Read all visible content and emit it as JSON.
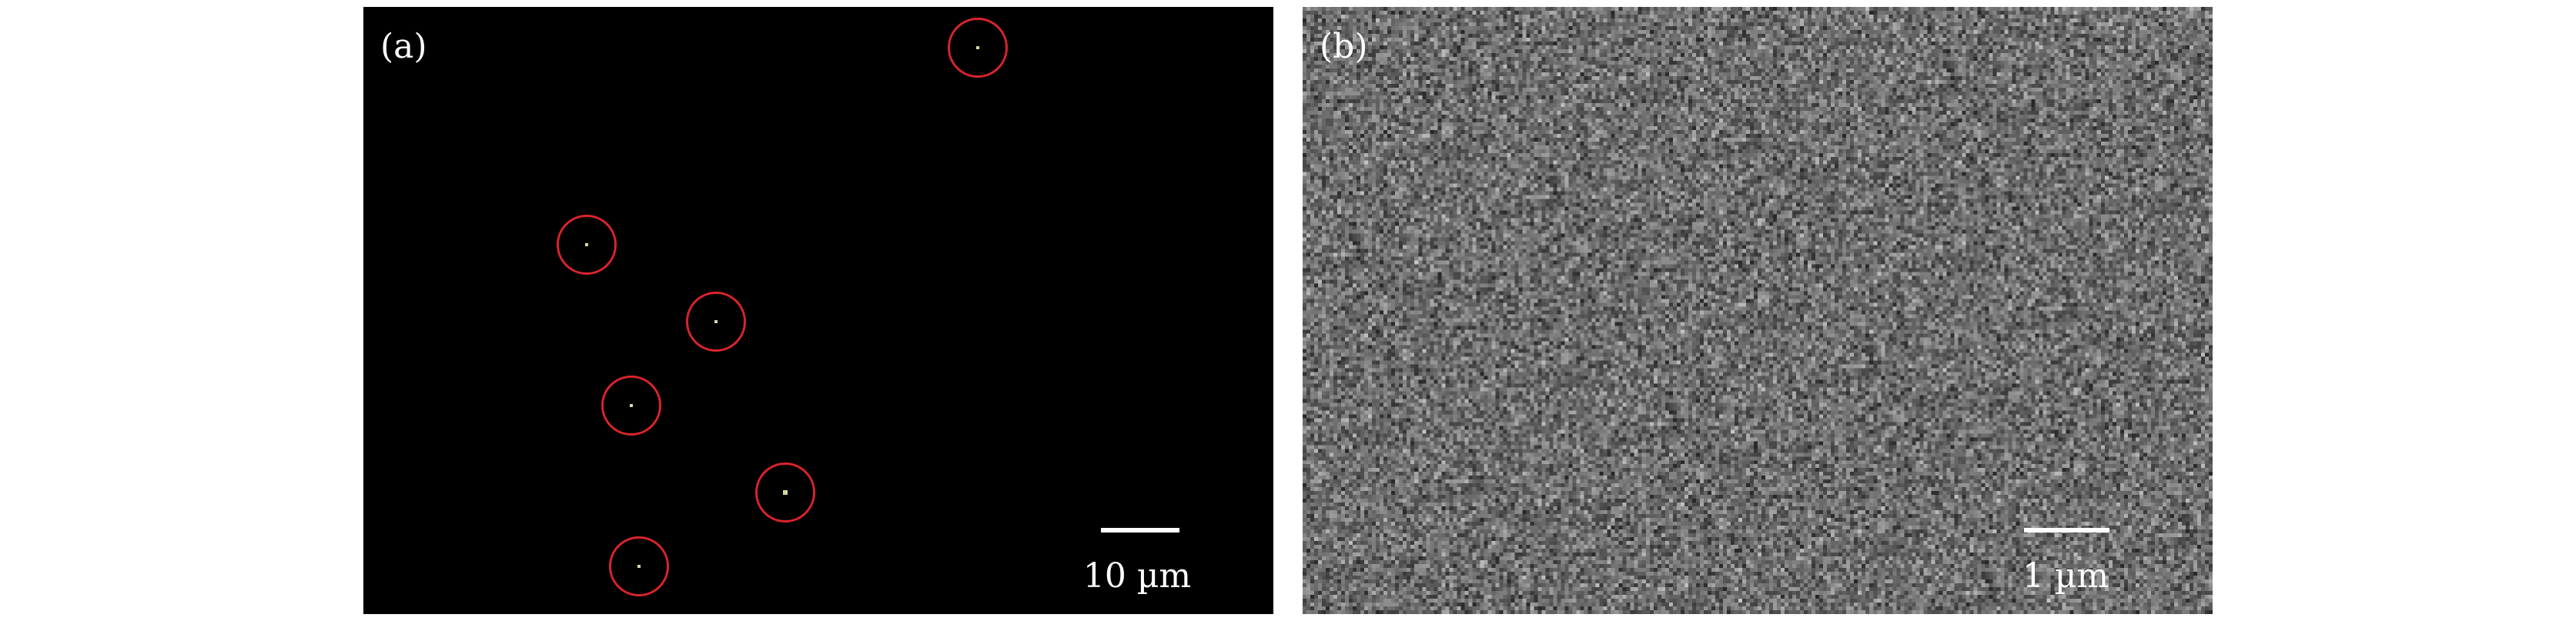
{
  "panels": [
    {
      "label": "(a)",
      "scale_bar": "10 µm",
      "background": "#000000",
      "marker_color": "#d8242c",
      "marked_spots": 6
    },
    {
      "label": "(b)",
      "scale_bar": "1 µm",
      "background": "#6e6e6e"
    }
  ]
}
